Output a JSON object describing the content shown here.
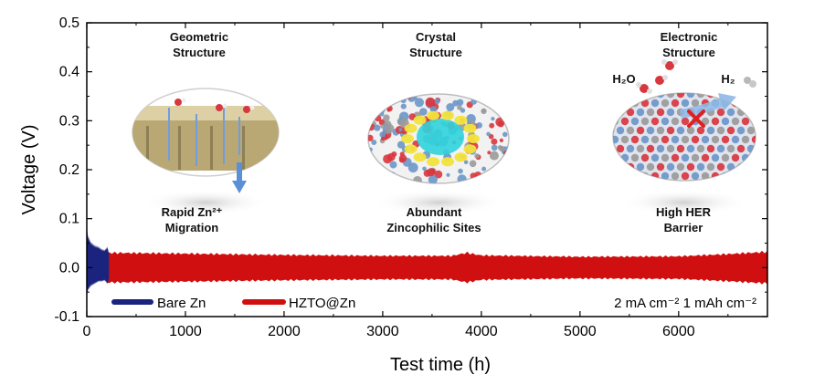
{
  "colors": {
    "bare_zn": "#1a237e",
    "hzto_zn": "#d01010",
    "wall": "#c8b98a",
    "crystal_red": "#d9363e",
    "crystal_blue": "#6b96c8",
    "crystal_gray": "#9a9a9a",
    "crystal_yellow": "#f2e33b",
    "crystal_cyan": "#2fd3dc"
  },
  "chart_data": {
    "type": "line",
    "xlabel": "Test time (h)",
    "ylabel": "Voltage (V)",
    "xlim": [
      0,
      6900
    ],
    "ylim": [
      -0.1,
      0.5
    ],
    "x_ticks": [
      "0",
      "1000",
      "2000",
      "3000",
      "4000",
      "5000",
      "6000"
    ],
    "y_ticks": [
      "-0.1",
      "0.0",
      "0.1",
      "0.2",
      "0.3",
      "0.4",
      "0.5"
    ],
    "grid": false,
    "legend_position": "bottom-left",
    "condition": "2 mA cm⁻² 1 mAh cm⁻²",
    "series": [
      {
        "name": "Bare Zn",
        "color": "#1a237e",
        "x_range": [
          0,
          225
        ],
        "envelope": {
          "x": [
            0,
            10,
            40,
            80,
            120,
            150,
            180,
            210,
            225
          ],
          "upper": [
            0.095,
            0.07,
            0.055,
            0.048,
            0.045,
            0.04,
            0.038,
            0.045,
            0.03
          ],
          "lower": [
            -0.065,
            -0.05,
            -0.04,
            -0.035,
            -0.03,
            -0.03,
            -0.028,
            -0.035,
            -0.025
          ]
        }
      },
      {
        "name": "HZTO@Zn",
        "color": "#d01010",
        "x_range": [
          200,
          6900
        ],
        "envelope": {
          "x": [
            200,
            1000,
            2000,
            3000,
            3700,
            3850,
            4000,
            5000,
            6000,
            6500,
            6900
          ],
          "upper": [
            0.033,
            0.031,
            0.028,
            0.026,
            0.026,
            0.033,
            0.027,
            0.024,
            0.025,
            0.03,
            0.035
          ],
          "lower": [
            -0.033,
            -0.031,
            -0.028,
            -0.026,
            -0.026,
            -0.033,
            -0.027,
            -0.024,
            -0.025,
            -0.03,
            -0.035
          ]
        }
      }
    ]
  },
  "insets": {
    "geometric": {
      "title1": "Geometric",
      "title2": "Structure",
      "cap1": "Rapid Zn²⁺",
      "cap2": "Migration"
    },
    "crystal": {
      "title1": "Crystal",
      "title2": "Structure",
      "cap1": "Abundant",
      "cap2": "Zincophilic Sites"
    },
    "electronic": {
      "title1": "Electronic",
      "title2": "Structure",
      "cap1": "High HER",
      "cap2": "Barrier",
      "h2o": "H₂O",
      "h2": "H₂"
    }
  }
}
